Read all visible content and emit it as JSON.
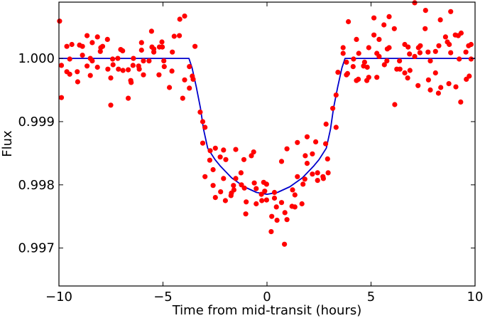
{
  "chart_data": {
    "type": "scatter",
    "title": "",
    "xlabel": "Time from mid-transit (hours)",
    "ylabel": "Flux",
    "xlim": [
      -10,
      10
    ],
    "ylim": [
      0.9964,
      1.00089
    ],
    "x_ticks": [
      -10,
      -5,
      0,
      5,
      10
    ],
    "x_tick_labels": [
      "−10",
      "−5",
      "0",
      "5",
      "10"
    ],
    "y_ticks": [
      1.0,
      0.999,
      0.998,
      0.997
    ],
    "y_tick_labels": [
      "1.000",
      "0.999",
      "0.998",
      "0.997"
    ],
    "grid": false,
    "colors": {
      "points": "#ff0000",
      "model": "#0000cc"
    },
    "series": [
      {
        "kind": "points",
        "points": [
          [
            -9.97,
            1.00059
          ],
          [
            -9.88,
            0.99938
          ],
          [
            -9.88,
            0.99989
          ],
          [
            -9.62,
            1.00019
          ],
          [
            -9.62,
            0.99979
          ],
          [
            -9.48,
            0.99975
          ],
          [
            -9.48,
            0.99999
          ],
          [
            -9.38,
            1.00022
          ],
          [
            -9.12,
            0.99979
          ],
          [
            -9.1,
            0.99963
          ],
          [
            -9.01,
            1.00021
          ],
          [
            -8.87,
            1.00019
          ],
          [
            -8.87,
            1.00005
          ],
          [
            -8.65,
            1.00036
          ],
          [
            -8.65,
            0.99988
          ],
          [
            -8.49,
            1.0
          ],
          [
            -8.49,
            0.99973
          ],
          [
            -8.4,
            1.00025
          ],
          [
            -8.4,
            0.99996
          ],
          [
            -8.15,
            1.00034
          ],
          [
            -8.15,
            0.99986
          ],
          [
            -8.01,
            1.00011
          ],
          [
            -7.99,
            1.00017
          ],
          [
            -7.9,
            1.00019
          ],
          [
            -7.67,
            1.0003
          ],
          [
            -7.65,
            0.99983
          ],
          [
            -7.51,
            0.99969
          ],
          [
            -7.51,
            0.99926
          ],
          [
            -7.42,
            0.99999
          ],
          [
            -7.4,
            0.9999
          ],
          [
            -7.17,
            1.0
          ],
          [
            -7.14,
            0.99983
          ],
          [
            -7.03,
            1.00014
          ],
          [
            -6.94,
            1.00012
          ],
          [
            -6.92,
            0.99981
          ],
          [
            -6.67,
            0.99982
          ],
          [
            -6.67,
            0.99937
          ],
          [
            -6.55,
            0.99965
          ],
          [
            -6.53,
            0.99962
          ],
          [
            -6.44,
            0.99989
          ],
          [
            -6.42,
            1.0
          ],
          [
            -6.17,
            0.99988
          ],
          [
            -6.14,
            0.99983
          ],
          [
            -6.03,
            1.00025
          ],
          [
            -6.03,
            1.00013
          ],
          [
            -5.94,
            0.99974
          ],
          [
            -5.94,
            0.99996
          ],
          [
            -5.67,
            0.99996
          ],
          [
            -5.55,
            1.00043
          ],
          [
            -5.53,
            1.00018
          ],
          [
            -5.44,
            1.00015
          ],
          [
            -5.44,
            1.0001
          ],
          [
            -5.19,
            0.99974
          ],
          [
            -5.17,
            1.00018
          ],
          [
            -5.05,
            1.00026
          ],
          [
            -5.03,
            1.00018
          ],
          [
            -4.96,
            0.99996
          ],
          [
            -4.94,
            0.99987
          ],
          [
            -4.69,
            0.99954
          ],
          [
            -4.57,
            0.9998
          ],
          [
            -4.55,
            1.0001
          ],
          [
            -4.46,
            1.00035
          ],
          [
            -4.21,
            1.00036
          ],
          [
            -4.19,
            1.00062
          ],
          [
            -4.05,
            0.99937
          ],
          [
            -3.96,
            1.00067
          ],
          [
            -3.96,
            0.99966
          ],
          [
            -3.73,
            0.99953
          ],
          [
            -3.73,
            0.99987
          ],
          [
            -3.59,
            0.99972
          ],
          [
            -3.55,
            0.99967
          ],
          [
            -3.46,
            1.00019
          ],
          [
            -3.21,
            0.99915
          ],
          [
            -3.09,
            0.999
          ],
          [
            -2.98,
            0.99891
          ],
          [
            -3.09,
            0.99866
          ],
          [
            -2.73,
            0.99854
          ],
          [
            -2.48,
            0.99858
          ],
          [
            -2.09,
            0.99855
          ],
          [
            -1.5,
            0.99856
          ],
          [
            -2.25,
            0.99844
          ],
          [
            -1.98,
            0.9984
          ],
          [
            -2.75,
            0.99839
          ],
          [
            -2.59,
            0.99824
          ],
          [
            -2.98,
            0.99813
          ],
          [
            -2.59,
            0.99799
          ],
          [
            -2.48,
            0.9978
          ],
          [
            -2.23,
            0.99789
          ],
          [
            -2.09,
            0.9981
          ],
          [
            -2.0,
            0.99775
          ],
          [
            -1.73,
            0.99783
          ],
          [
            -1.71,
            0.99787
          ],
          [
            -1.59,
            0.99792
          ],
          [
            -1.61,
            0.99799
          ],
          [
            -1.5,
            0.9981
          ],
          [
            -1.25,
            0.99819
          ],
          [
            -1.11,
            0.9984
          ],
          [
            -0.75,
            0.99846
          ],
          [
            -0.64,
            0.99852
          ],
          [
            -1.23,
            0.998
          ],
          [
            -1.09,
            0.99795
          ],
          [
            -1.0,
            0.99773
          ],
          [
            -1.02,
            0.99754
          ],
          [
            -0.61,
            0.99803
          ],
          [
            -0.52,
            0.99794
          ],
          [
            -0.52,
            0.9977
          ],
          [
            -0.27,
            0.99785
          ],
          [
            -0.16,
            0.99804
          ],
          [
            -0.02,
            0.99801
          ],
          [
            -0.11,
            0.9979
          ],
          [
            -0.25,
            0.99775
          ],
          [
            -0.02,
            0.99776
          ],
          [
            0.36,
            0.99788
          ],
          [
            0.36,
            0.99779
          ],
          [
            0.23,
            0.9975
          ],
          [
            0.2,
            0.99726
          ],
          [
            0.45,
            0.99765
          ],
          [
            0.48,
            0.99744
          ],
          [
            0.7,
            0.99772
          ],
          [
            0.86,
            0.99756
          ],
          [
            0.96,
            0.99745
          ],
          [
            0.84,
            0.99706
          ],
          [
            0.7,
            0.99837
          ],
          [
            0.96,
            0.99857
          ],
          [
            1.23,
            0.99792
          ],
          [
            1.34,
            0.99784
          ],
          [
            1.2,
            0.99766
          ],
          [
            1.34,
            0.99765
          ],
          [
            1.68,
            0.9977
          ],
          [
            1.46,
            0.99813
          ],
          [
            1.46,
            0.99867
          ],
          [
            1.73,
            0.99801
          ],
          [
            1.82,
            0.99809
          ],
          [
            1.84,
            0.99846
          ],
          [
            1.93,
            0.99876
          ],
          [
            1.93,
            0.99834
          ],
          [
            2.18,
            0.99849
          ],
          [
            2.18,
            0.99817
          ],
          [
            2.34,
            0.99868
          ],
          [
            2.43,
            0.99819
          ],
          [
            2.43,
            0.99807
          ],
          [
            2.69,
            0.99813
          ],
          [
            2.71,
            0.9981
          ],
          [
            2.82,
            0.99865
          ],
          [
            2.91,
            0.99841
          ],
          [
            2.94,
            0.99819
          ],
          [
            2.84,
            0.99896
          ],
          [
            3.32,
            0.99891
          ],
          [
            3.16,
            0.99921
          ],
          [
            7.1,
            1.00088
          ],
          [
            7.62,
            1.00076
          ],
          [
            8.83,
            1.00074
          ],
          [
            3.91,
            1.00058
          ],
          [
            5.14,
            1.00064
          ],
          [
            5.87,
            1.00066
          ],
          [
            5.62,
            1.00053
          ],
          [
            6.12,
            1.00047
          ],
          [
            7.6,
            1.00047
          ],
          [
            8.33,
            1.00061
          ],
          [
            5.14,
            1.00037
          ],
          [
            5.39,
            1.0003
          ],
          [
            4.3,
            1.0003
          ],
          [
            3.66,
            1.00017
          ],
          [
            3.66,
            1.00008
          ],
          [
            4.41,
            1.00008
          ],
          [
            4.89,
            1.00017
          ],
          [
            5.28,
            1.00008
          ],
          [
            5.39,
            1.00003
          ],
          [
            5.78,
            1.00015
          ],
          [
            5.87,
            1.00017
          ],
          [
            6.62,
            1.00022
          ],
          [
            6.78,
            1.00018
          ],
          [
            6.85,
            1.00007
          ],
          [
            7.1,
            1.00003
          ],
          [
            7.28,
            1.00017
          ],
          [
            7.37,
            1.0002
          ],
          [
            7.35,
            1.00009
          ],
          [
            7.74,
            1.0001
          ],
          [
            8.1,
            1.00011
          ],
          [
            8.26,
            1.0002
          ],
          [
            8.58,
            1.00034
          ],
          [
            8.67,
            1.00026
          ],
          [
            8.76,
            1.00022
          ],
          [
            8.83,
            1.00009
          ],
          [
            9.05,
            1.00037
          ],
          [
            9.19,
            1.00036
          ],
          [
            9.33,
            1.0004
          ],
          [
            9.56,
            1.0001
          ],
          [
            9.69,
            1.0002
          ],
          [
            9.81,
            1.00022
          ],
          [
            9.81,
            0.99999
          ],
          [
            9.24,
            0.99999
          ],
          [
            7.85,
            0.99996
          ],
          [
            6.37,
            0.99996
          ],
          [
            5.64,
            0.9999
          ],
          [
            5.76,
            0.99996
          ],
          [
            4.69,
            0.99994
          ],
          [
            4.64,
            0.99988
          ],
          [
            4.82,
            0.99986
          ],
          [
            4.16,
            0.99999
          ],
          [
            4.14,
            0.99987
          ],
          [
            3.82,
            0.99994
          ],
          [
            3.41,
            0.99978
          ],
          [
            3.87,
            0.99976
          ],
          [
            3.82,
            0.99974
          ],
          [
            4.3,
            0.99965
          ],
          [
            4.39,
            0.99967
          ],
          [
            4.8,
            0.99965
          ],
          [
            4.89,
            0.9997
          ],
          [
            5.28,
            0.9997
          ],
          [
            6.24,
            0.99983
          ],
          [
            6.39,
            0.99983
          ],
          [
            6.62,
            0.99977
          ],
          [
            6.87,
            0.99981
          ],
          [
            6.76,
            0.99969
          ],
          [
            7.26,
            0.99957
          ],
          [
            7.76,
            0.99966
          ],
          [
            8.1,
            0.99977
          ],
          [
            7.85,
            0.9995
          ],
          [
            8.24,
            0.99945
          ],
          [
            8.35,
            0.99954
          ],
          [
            8.74,
            0.9996
          ],
          [
            9.08,
            0.99955
          ],
          [
            9.58,
            0.99967
          ],
          [
            9.72,
            0.99972
          ],
          [
            9.31,
            0.99931
          ],
          [
            6.14,
            0.99927
          ],
          [
            3.32,
            0.99942
          ]
        ]
      },
      {
        "kind": "line",
        "points": [
          [
            -10,
            1.0
          ],
          [
            -3.75,
            1.0
          ],
          [
            -3.6,
            0.99985
          ],
          [
            -3.4,
            0.99955
          ],
          [
            -3.2,
            0.99922
          ],
          [
            -3.05,
            0.99888
          ],
          [
            -2.85,
            0.99858
          ],
          [
            -2.5,
            0.9984
          ],
          [
            -2.25,
            0.9983
          ],
          [
            -1.7,
            0.99811
          ],
          [
            -1.1,
            0.99797
          ],
          [
            -0.5,
            0.99788
          ],
          [
            0,
            0.99785
          ],
          [
            0.5,
            0.99788
          ],
          [
            1.1,
            0.99797
          ],
          [
            1.7,
            0.99811
          ],
          [
            2.25,
            0.9983
          ],
          [
            2.5,
            0.9984
          ],
          [
            2.85,
            0.99858
          ],
          [
            3.05,
            0.99888
          ],
          [
            3.2,
            0.99922
          ],
          [
            3.4,
            0.99955
          ],
          [
            3.6,
            0.99985
          ],
          [
            3.75,
            1.0
          ],
          [
            10,
            1.0
          ]
        ]
      }
    ]
  }
}
